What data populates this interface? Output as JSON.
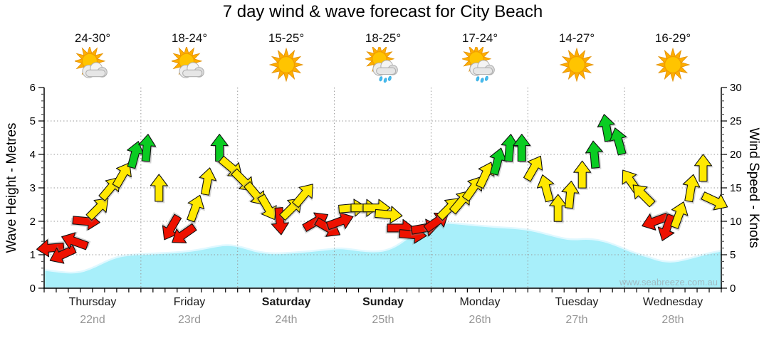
{
  "title": "7 day wind & wave forecast for City Beach",
  "watermark": "www.seabreeze.com.au",
  "axes": {
    "left_label": "Wave Height - Metres",
    "right_label": "Wind Speed - Knots"
  },
  "days": [
    {
      "name": "Thursday",
      "date": "22nd",
      "temp": "24-30°",
      "icon": "sun-cloud",
      "weekend": false
    },
    {
      "name": "Friday",
      "date": "23rd",
      "temp": "18-24°",
      "icon": "sun-cloud",
      "weekend": false
    },
    {
      "name": "Saturday",
      "date": "24th",
      "temp": "15-25°",
      "icon": "sun",
      "weekend": true
    },
    {
      "name": "Sunday",
      "date": "25th",
      "temp": "18-25°",
      "icon": "sun-cloud-rain",
      "weekend": true
    },
    {
      "name": "Monday",
      "date": "26th",
      "temp": "17-24°",
      "icon": "sun-cloud-rain",
      "weekend": false
    },
    {
      "name": "Tuesday",
      "date": "27th",
      "temp": "14-27°",
      "icon": "sun",
      "weekend": false
    },
    {
      "name": "Wednesday",
      "date": "28th",
      "temp": "16-29°",
      "icon": "sun",
      "weekend": false
    }
  ],
  "chart_data": {
    "type": "area+wind-arrows",
    "title": "7 day wind & wave forecast for City Beach",
    "ylabel_left": "Wave Height - Metres",
    "ylabel_right": "Wind Speed - Knots",
    "ylim_wave": [
      0,
      6
    ],
    "ylim_wind": [
      0,
      30
    ],
    "left_ticks": [
      0,
      1,
      2,
      3,
      4,
      5,
      6
    ],
    "right_ticks": [
      0,
      5,
      10,
      15,
      20,
      25,
      30
    ],
    "grid": "dotted",
    "steps_per_day": 8,
    "x_unit": "3-hour intervals over 7 days",
    "wave_height_m": [
      0.55,
      0.5,
      0.46,
      0.48,
      0.62,
      0.8,
      0.95,
      1.0,
      1.02,
      1.04,
      1.06,
      1.08,
      1.12,
      1.18,
      1.26,
      1.3,
      1.24,
      1.12,
      1.05,
      1.04,
      1.06,
      1.09,
      1.12,
      1.16,
      1.2,
      1.16,
      1.11,
      1.09,
      1.15,
      1.35,
      1.65,
      1.9,
      1.97,
      1.95,
      1.92,
      1.88,
      1.85,
      1.82,
      1.8,
      1.77,
      1.7,
      1.6,
      1.5,
      1.45,
      1.48,
      1.45,
      1.35,
      1.2,
      1.05,
      0.95,
      0.82,
      0.78,
      0.85,
      0.95,
      1.05,
      1.12
    ],
    "wind_kt": [
      6,
      5,
      7,
      10,
      12,
      15,
      17,
      20,
      21,
      15,
      9,
      8,
      12,
      16,
      21,
      18,
      16,
      14,
      12,
      10,
      12,
      14,
      10,
      9,
      10,
      12,
      12,
      12,
      11,
      9,
      8,
      9,
      10,
      12,
      13,
      15,
      17,
      19,
      21,
      21,
      18,
      15,
      12,
      14,
      17,
      20,
      24,
      22,
      16,
      14,
      10,
      9,
      11,
      15,
      18,
      13
    ],
    "wind_dir_deg": [
      265,
      245,
      290,
      95,
      45,
      40,
      30,
      15,
      5,
      0,
      210,
      235,
      20,
      10,
      0,
      130,
      135,
      140,
      150,
      175,
      45,
      40,
      60,
      120,
      70,
      85,
      90,
      90,
      95,
      90,
      95,
      80,
      55,
      45,
      40,
      35,
      25,
      15,
      5,
      0,
      30,
      345,
      0,
      5,
      0,
      355,
      350,
      345,
      325,
      315,
      250,
      200,
      20,
      10,
      0,
      115
    ],
    "wind_color_rule": {
      "red_max_kt": 10,
      "green_min_kt": 19
    },
    "colors": {
      "red": "#EE1100",
      "yellow": "#FFE800",
      "green": "#0ACC22",
      "wave_fill": "#A8EFFA",
      "wave_edge": "#DFF8FF",
      "grid": "#999999",
      "axis": "#000000",
      "watermark_text": "#9FB3BA"
    }
  }
}
